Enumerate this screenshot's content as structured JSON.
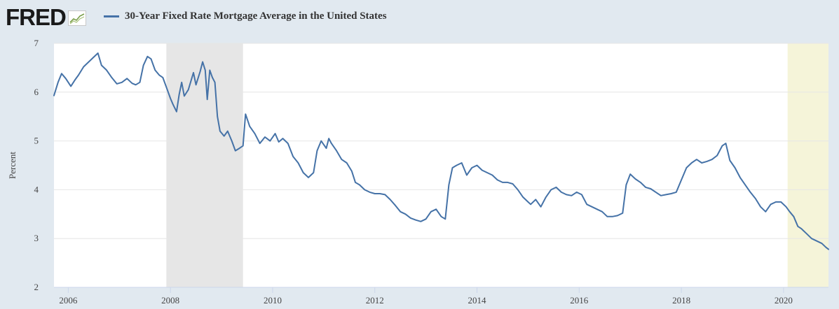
{
  "header": {
    "logo_text": "FRED",
    "logo_icon": "trend-chart-icon",
    "legend_label": "30-Year Fixed Rate Mortgage Average in the United States",
    "series_color": "#4572a7"
  },
  "chart_data": {
    "type": "line",
    "title": "30-Year Fixed Rate Mortgage Average in the United States",
    "xlabel": "",
    "ylabel": "Percent",
    "xlim": [
      2005.72,
      2020.88
    ],
    "ylim": [
      2,
      7
    ],
    "yticks": [
      2,
      3,
      4,
      5,
      6,
      7
    ],
    "ytick_labels": [
      "2",
      "3",
      "4",
      "5",
      "6",
      "7"
    ],
    "xticks": [
      2006,
      2008,
      2010,
      2012,
      2014,
      2016,
      2018,
      2020
    ],
    "xtick_labels": [
      "2006",
      "2008",
      "2010",
      "2012",
      "2014",
      "2016",
      "2018",
      "2020"
    ],
    "grid": "horizontal",
    "legend": "top-left",
    "shaded_regions": [
      {
        "kind": "recession",
        "start": 2007.92,
        "end": 2009.42,
        "color": "#e6e6e6"
      },
      {
        "kind": "highlight",
        "start": 2020.08,
        "end": 2020.88,
        "color": "#f5f4d9"
      }
    ],
    "series": [
      {
        "name": "30-Year Fixed Rate Mortgage Average in the United States",
        "color": "#4572a7",
        "x": [
          2005.72,
          2005.8,
          2005.87,
          2005.95,
          2006.05,
          2006.13,
          2006.2,
          2006.3,
          2006.4,
          2006.5,
          2006.58,
          2006.65,
          2006.75,
          2006.85,
          2006.95,
          2007.05,
          2007.15,
          2007.25,
          2007.32,
          2007.4,
          2007.47,
          2007.55,
          2007.62,
          2007.7,
          2007.78,
          2007.85,
          2007.92,
          2008.0,
          2008.05,
          2008.12,
          2008.17,
          2008.22,
          2008.27,
          2008.35,
          2008.45,
          2008.5,
          2008.58,
          2008.63,
          2008.68,
          2008.72,
          2008.77,
          2008.82,
          2008.87,
          2008.92,
          2008.97,
          2009.05,
          2009.12,
          2009.2,
          2009.27,
          2009.35,
          2009.42,
          2009.47,
          2009.55,
          2009.65,
          2009.75,
          2009.85,
          2009.95,
          2010.05,
          2010.12,
          2010.2,
          2010.3,
          2010.4,
          2010.5,
          2010.6,
          2010.7,
          2010.8,
          2010.87,
          2010.95,
          2011.05,
          2011.1,
          2011.15,
          2011.25,
          2011.35,
          2011.45,
          2011.55,
          2011.62,
          2011.7,
          2011.8,
          2011.9,
          2012.0,
          2012.1,
          2012.2,
          2012.3,
          2012.4,
          2012.5,
          2012.6,
          2012.7,
          2012.8,
          2012.9,
          2013.0,
          2013.1,
          2013.2,
          2013.3,
          2013.38,
          2013.45,
          2013.52,
          2013.6,
          2013.7,
          2013.8,
          2013.9,
          2014.0,
          2014.1,
          2014.2,
          2014.3,
          2014.4,
          2014.5,
          2014.6,
          2014.7,
          2014.8,
          2014.9,
          2015.0,
          2015.05,
          2015.15,
          2015.25,
          2015.35,
          2015.45,
          2015.55,
          2015.65,
          2015.75,
          2015.85,
          2015.95,
          2016.05,
          2016.15,
          2016.25,
          2016.35,
          2016.45,
          2016.55,
          2016.65,
          2016.75,
          2016.85,
          2016.92,
          2017.0,
          2017.1,
          2017.2,
          2017.3,
          2017.4,
          2017.5,
          2017.6,
          2017.7,
          2017.8,
          2017.9,
          2018.0,
          2018.1,
          2018.2,
          2018.3,
          2018.4,
          2018.5,
          2018.6,
          2018.7,
          2018.8,
          2018.87,
          2018.95,
          2019.05,
          2019.15,
          2019.25,
          2019.35,
          2019.45,
          2019.55,
          2019.65,
          2019.75,
          2019.85,
          2019.95,
          2020.05,
          2020.12,
          2020.2,
          2020.28,
          2020.35,
          2020.45,
          2020.55,
          2020.65,
          2020.75,
          2020.83,
          2020.88
        ],
        "values": [
          5.93,
          6.2,
          6.38,
          6.28,
          6.12,
          6.25,
          6.35,
          6.52,
          6.62,
          6.72,
          6.8,
          6.55,
          6.45,
          6.3,
          6.17,
          6.2,
          6.28,
          6.18,
          6.15,
          6.2,
          6.55,
          6.73,
          6.68,
          6.45,
          6.35,
          6.3,
          6.1,
          5.87,
          5.75,
          5.6,
          5.95,
          6.2,
          5.92,
          6.05,
          6.4,
          6.15,
          6.42,
          6.62,
          6.45,
          5.85,
          6.45,
          6.3,
          6.2,
          5.5,
          5.2,
          5.1,
          5.2,
          5.0,
          4.8,
          4.85,
          4.9,
          5.55,
          5.3,
          5.15,
          4.95,
          5.08,
          5.0,
          5.15,
          4.98,
          5.05,
          4.95,
          4.68,
          4.55,
          4.35,
          4.25,
          4.35,
          4.8,
          5.0,
          4.85,
          5.05,
          4.95,
          4.8,
          4.62,
          4.55,
          4.38,
          4.15,
          4.1,
          4.0,
          3.95,
          3.92,
          3.92,
          3.9,
          3.8,
          3.68,
          3.55,
          3.5,
          3.42,
          3.38,
          3.35,
          3.4,
          3.55,
          3.6,
          3.45,
          3.4,
          4.1,
          4.45,
          4.5,
          4.55,
          4.3,
          4.45,
          4.5,
          4.4,
          4.35,
          4.3,
          4.2,
          4.15,
          4.15,
          4.12,
          4.0,
          3.85,
          3.75,
          3.7,
          3.8,
          3.65,
          3.85,
          4.0,
          4.05,
          3.95,
          3.9,
          3.88,
          3.95,
          3.9,
          3.7,
          3.65,
          3.6,
          3.55,
          3.45,
          3.45,
          3.47,
          3.52,
          4.1,
          4.32,
          4.22,
          4.15,
          4.05,
          4.02,
          3.95,
          3.88,
          3.9,
          3.92,
          3.95,
          4.2,
          4.45,
          4.55,
          4.62,
          4.55,
          4.58,
          4.62,
          4.7,
          4.9,
          4.95,
          4.6,
          4.45,
          4.25,
          4.1,
          3.95,
          3.82,
          3.65,
          3.55,
          3.7,
          3.75,
          3.75,
          3.65,
          3.55,
          3.45,
          3.25,
          3.2,
          3.1,
          3.0,
          2.95,
          2.9,
          2.82,
          2.78
        ]
      }
    ]
  }
}
